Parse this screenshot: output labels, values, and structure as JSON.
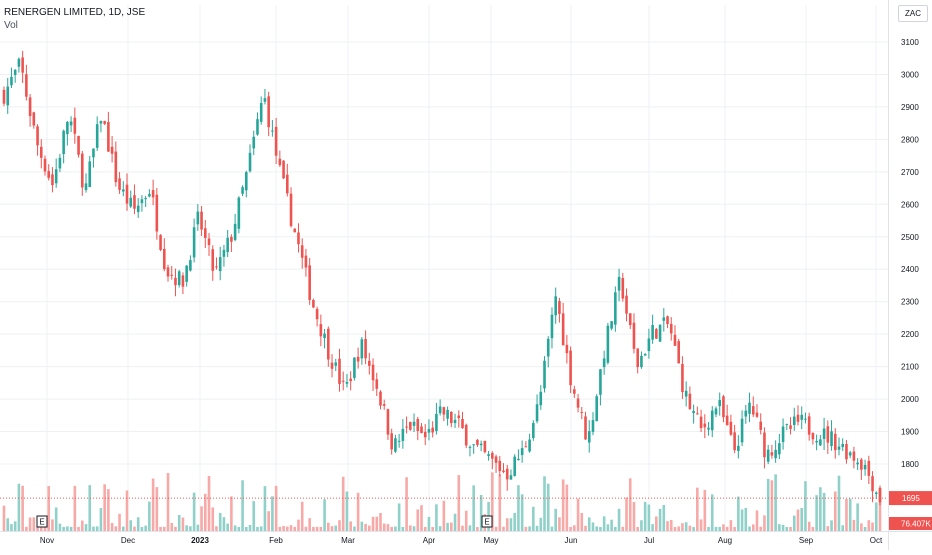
{
  "header": {
    "symbol": "RENERGEN LIMITED, 1D, JSE",
    "volume_label": "Vol",
    "currency": "ZAC"
  },
  "colors": {
    "up": "#26a69a",
    "down": "#ef5350",
    "up_vol": "#8fd1c8",
    "down_vol": "#f7a9a7",
    "grid": "#eef0f3",
    "text": "#131722"
  },
  "markers": {
    "earnings_label": "E"
  },
  "chart_data": {
    "type": "candlestick",
    "ylim": [
      1690,
      3150
    ],
    "yticks": [
      1800,
      1900,
      2000,
      2100,
      2200,
      2300,
      2400,
      2500,
      2600,
      2700,
      2800,
      2900,
      3000,
      3100
    ],
    "xticks": [
      "Nov",
      "Dec",
      "2023",
      "Feb",
      "Mar",
      "Apr",
      "May",
      "Jun",
      "Jul",
      "Aug",
      "Sep",
      "Oct"
    ],
    "last_price": "1695",
    "last_volume": "76.407K",
    "earnings_markers": [
      "Nov",
      "May"
    ],
    "price_anchors": [
      [
        "Oct",
        2940
      ],
      [
        "Oct",
        3030
      ],
      [
        "Nov",
        2790
      ],
      [
        "Nov",
        2660
      ],
      [
        "Nov",
        2880
      ],
      [
        "Nov",
        2640
      ],
      [
        "Nov",
        2880
      ],
      [
        "Dec",
        2660
      ],
      [
        "Dec",
        2580
      ],
      [
        "Dec",
        2650
      ],
      [
        "Dec",
        2400
      ],
      [
        "Dec",
        2360
      ],
      [
        "2023",
        2560
      ],
      [
        "2023",
        2380
      ],
      [
        "2023",
        2500
      ],
      [
        "2023",
        2700
      ],
      [
        "2023",
        2940
      ],
      [
        "Feb",
        2700
      ],
      [
        "Feb",
        2500
      ],
      [
        "Feb",
        2300
      ],
      [
        "Mar",
        2150
      ],
      [
        "Mar",
        2020
      ],
      [
        "Mar",
        2170
      ],
      [
        "Mar",
        2040
      ],
      [
        "Mar",
        1850
      ],
      [
        "Apr",
        1920
      ],
      [
        "Apr",
        1880
      ],
      [
        "Apr",
        1960
      ],
      [
        "Apr",
        1920
      ],
      [
        "Apr",
        1850
      ],
      [
        "May",
        1810
      ],
      [
        "May",
        1770
      ],
      [
        "May",
        1840
      ],
      [
        "May",
        1990
      ],
      [
        "Jun",
        2320
      ],
      [
        "Jun",
        2050
      ],
      [
        "Jun",
        1870
      ],
      [
        "Jun",
        2150
      ],
      [
        "Jun",
        2370
      ],
      [
        "Jun",
        2100
      ],
      [
        "Jul",
        2210
      ],
      [
        "Jul",
        2230
      ],
      [
        "Jul",
        2010
      ],
      [
        "Jul",
        1900
      ],
      [
        "Jul",
        1990
      ],
      [
        "Aug",
        1840
      ],
      [
        "Aug",
        1990
      ],
      [
        "Aug",
        1830
      ],
      [
        "Aug",
        1890
      ],
      [
        "Sep",
        1930
      ],
      [
        "Sep",
        1900
      ],
      [
        "Sep",
        1880
      ],
      [
        "Sep",
        1840
      ],
      [
        "Oct",
        1800
      ],
      [
        "Oct",
        1695
      ]
    ]
  }
}
